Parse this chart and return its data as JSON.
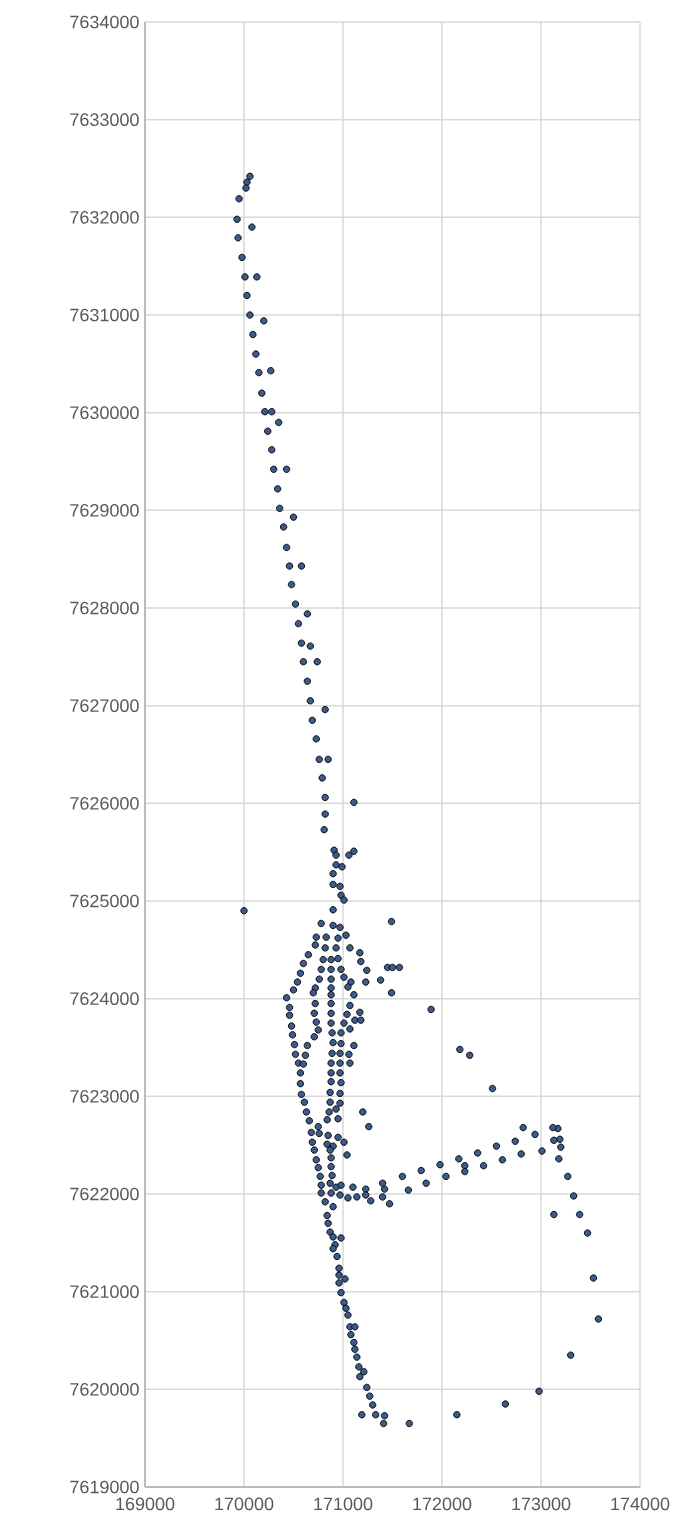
{
  "chart_data": {
    "type": "scatter",
    "color": "#3a5b8c",
    "marker": "circle",
    "grid": true,
    "xlim": [
      169000,
      174000
    ],
    "ylim": [
      7619000,
      7634000
    ],
    "xticks": [
      169000,
      170000,
      171000,
      172000,
      173000,
      174000
    ],
    "yticks": [
      7619000,
      7620000,
      7621000,
      7622000,
      7623000,
      7624000,
      7625000,
      7626000,
      7627000,
      7628000,
      7629000,
      7630000,
      7631000,
      7632000,
      7633000,
      7634000
    ],
    "x": [
      170060,
      170030,
      170020,
      169950,
      169930,
      170080,
      169940,
      169980,
      170010,
      170130,
      170030,
      170060,
      170200,
      170090,
      170120,
      170150,
      170270,
      170180,
      170210,
      170280,
      170350,
      170240,
      170280,
      170300,
      170430,
      170340,
      170360,
      170500,
      170400,
      170430,
      170460,
      170580,
      170480,
      170520,
      170640,
      170550,
      170580,
      170670,
      170600,
      170740,
      170640,
      170670,
      170820,
      170690,
      170730,
      170760,
      170850,
      170790,
      170820,
      171110,
      170820,
      170810,
      170910,
      170930,
      171060,
      171110,
      170930,
      170990,
      170900,
      170900,
      170970,
      170980,
      171010,
      170000,
      170900,
      171490,
      170780,
      170900,
      170970,
      170730,
      170830,
      170950,
      171030,
      170720,
      170820,
      170930,
      171070,
      170650,
      171170,
      170800,
      170880,
      170950,
      171180,
      170600,
      170780,
      170880,
      170980,
      171240,
      170570,
      171450,
      171500,
      171570,
      170760,
      170880,
      171010,
      171380,
      171230,
      170540,
      171080,
      170500,
      170720,
      170880,
      171050,
      171490,
      170430,
      170700,
      170880,
      171110,
      171070,
      170880,
      170720,
      170460,
      171890,
      171170,
      171120,
      171180,
      170460,
      170710,
      170880,
      171040,
      170480,
      170730,
      170880,
      171010,
      170490,
      170750,
      170890,
      170980,
      171070,
      170710,
      170510,
      170640,
      170900,
      170980,
      171110,
      170520,
      170620,
      170890,
      170970,
      171060,
      170550,
      170600,
      170880,
      170970,
      171070,
      170570,
      170880,
      170970,
      170570,
      170880,
      170980,
      170580,
      170870,
      170970,
      170610,
      170870,
      170970,
      171200,
      170630,
      170860,
      170930,
      170660,
      170750,
      170840,
      170950,
      171260,
      170680,
      170760,
      170850,
      170950,
      170690,
      170840,
      170900,
      171010,
      170710,
      170870,
      171040,
      170730,
      170880,
      170750,
      170880,
      170770,
      170890,
      170780,
      170870,
      170930,
      170980,
      171100,
      171230,
      171400,
      171420,
      171600,
      171790,
      171980,
      172040,
      171840,
      171660,
      170780,
      170880,
      170970,
      171050,
      171140,
      171230,
      171280,
      171400,
      171470,
      170820,
      170900,
      170840,
      170850,
      170870,
      170900,
      170980,
      170920,
      170900,
      170940,
      170960,
      170960,
      171020,
      170960,
      170980,
      171010,
      171030,
      171050,
      171070,
      171120,
      171080,
      171110,
      171120,
      171140,
      171160,
      171210,
      171170,
      171240,
      171270,
      171300,
      171330,
      171420,
      171410,
      171190,
      171670,
      172150,
      172640,
      172980,
      173300,
      173580,
      173530,
      173470,
      173390,
      173130,
      173330,
      173270,
      173180,
      173200,
      173190,
      173130,
      173170,
      173120,
      173010,
      172800,
      172610,
      172420,
      172230,
      172230,
      172170,
      172360,
      172550,
      172740,
      172940,
      172820,
      172510,
      172280,
      172180
    ],
    "values": [
      7632420,
      7632360,
      7632300,
      7632190,
      7631980,
      7631900,
      7631790,
      7631590,
      7631390,
      7631390,
      7631200,
      7631000,
      7630940,
      7630800,
      7630600,
      7630410,
      7630430,
      7630200,
      7630010,
      7630010,
      7629900,
      7629810,
      7629620,
      7629420,
      7629420,
      7629220,
      7629020,
      7628930,
      7628830,
      7628620,
      7628430,
      7628430,
      7628240,
      7628040,
      7627940,
      7627840,
      7627640,
      7627610,
      7627450,
      7627450,
      7627250,
      7627050,
      7626960,
      7626850,
      7626660,
      7626450,
      7626450,
      7626260,
      7626060,
      7626010,
      7625890,
      7625730,
      7625520,
      7625470,
      7625470,
      7625510,
      7625370,
      7625350,
      7625280,
      7625170,
      7625150,
      7625060,
      7625010,
      7624900,
      7624910,
      7624790,
      7624770,
      7624750,
      7624730,
      7624630,
      7624630,
      7624620,
      7624650,
      7624550,
      7624520,
      7624520,
      7624520,
      7624450,
      7624470,
      7624400,
      7624400,
      7624410,
      7624380,
      7624360,
      7624300,
      7624300,
      7624300,
      7624290,
      7624260,
      7624320,
      7624320,
      7624320,
      7624200,
      7624200,
      7624220,
      7624190,
      7624170,
      7624170,
      7624170,
      7624090,
      7624110,
      7624110,
      7624120,
      7624060,
      7624010,
      7624060,
      7624040,
      7624040,
      7623930,
      7623950,
      7623950,
      7623910,
      7623890,
      7623860,
      7623780,
      7623780,
      7623830,
      7623850,
      7623850,
      7623840,
      7623720,
      7623760,
      7623750,
      7623750,
      7623630,
      7623680,
      7623650,
      7623650,
      7623690,
      7623610,
      7623530,
      7623520,
      7623550,
      7623540,
      7623520,
      7623430,
      7623420,
      7623440,
      7623440,
      7623430,
      7623340,
      7623330,
      7623340,
      7623340,
      7623340,
      7623240,
      7623240,
      7623240,
      7623130,
      7623150,
      7623140,
      7623020,
      7623040,
      7623030,
      7622940,
      7622940,
      7622930,
      7622840,
      7622840,
      7622840,
      7622870,
      7622750,
      7622690,
      7622760,
      7622770,
      7622690,
      7622630,
      7622620,
      7622600,
      7622580,
      7622530,
      7622510,
      7622490,
      7622530,
      7622450,
      7622450,
      7622400,
      7622350,
      7622370,
      7622270,
      7622280,
      7622180,
      7622190,
      7622090,
      7622110,
      7622070,
      7622090,
      7622070,
      7622050,
      7622110,
      7622050,
      7622180,
      7622240,
      7622300,
      7622180,
      7622110,
      7622040,
      7622010,
      7622010,
      7621990,
      7621960,
      7621970,
      7621990,
      7621930,
      7621970,
      7621900,
      7621920,
      7621870,
      7621780,
      7621700,
      7621610,
      7621560,
      7621550,
      7621480,
      7621440,
      7621360,
      7621240,
      7621170,
      7621130,
      7621090,
      7620990,
      7620890,
      7620830,
      7620760,
      7620640,
      7620640,
      7620560,
      7620480,
      7620410,
      7620330,
      7620230,
      7620180,
      7620130,
      7620020,
      7619930,
      7619840,
      7619740,
      7619730,
      7619650,
      7619740,
      7619650,
      7619740,
      7619850,
      7619980,
      7620350,
      7620720,
      7621140,
      7621600,
      7621790,
      7621790,
      7621980,
      7622180,
      7622360,
      7622480,
      7622560,
      7622550,
      7622670,
      7622680,
      7622440,
      7622410,
      7622350,
      7622290,
      7622290,
      7622230,
      7622360,
      7622420,
      7622490,
      7622540,
      7622610,
      7622680,
      7623080,
      7623420,
      7623480
    ]
  }
}
